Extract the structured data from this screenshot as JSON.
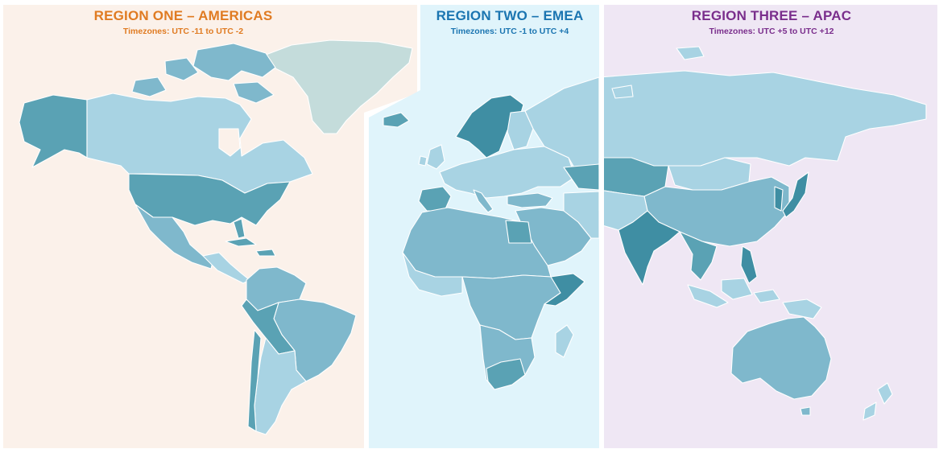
{
  "regions": [
    {
      "id": "americas",
      "title": "REGION ONE – AMERICAS",
      "subtitle": "Timezones: UTC -11 to UTC -2",
      "text_color": "#e07b22",
      "background": "#fbf1ea"
    },
    {
      "id": "emea",
      "title": "REGION TWO – EMEA",
      "subtitle": "Timezones: UTC -1 to UTC +4",
      "text_color": "#1b75b1",
      "background": "#e0f4fb"
    },
    {
      "id": "apac",
      "title": "REGION THREE – APAC",
      "subtitle": "Timezones: UTC +5 to UTC +12",
      "text_color": "#7a2e8c",
      "background": "#efe7f4"
    }
  ],
  "map_colors": {
    "land_light": "#a8d3e3",
    "land_mid": "#7fb8cc",
    "land_dark": "#5aa2b4",
    "land_deep": "#3f8ea3",
    "greenland": "#c4dcdb",
    "border": "#ffffff"
  }
}
